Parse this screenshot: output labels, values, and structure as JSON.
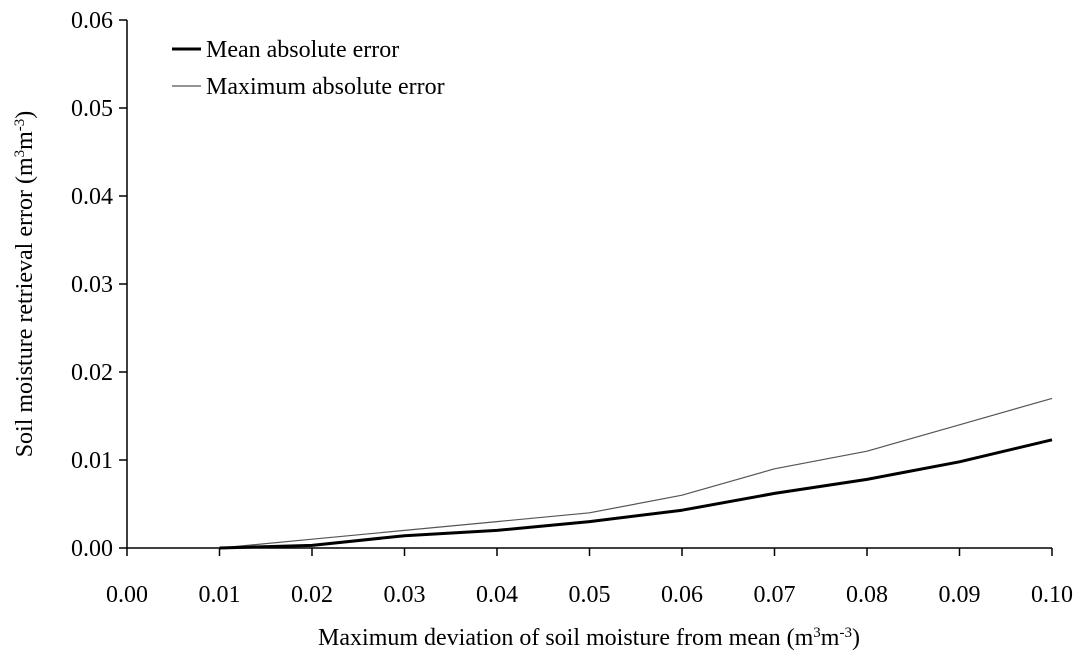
{
  "chart_data": {
    "type": "line",
    "xlabel": "Maximum deviation of soil moisture from mean",
    "xlabel_unit": {
      "base1": "m",
      "sup1": "3",
      "base2": "m",
      "sup2": "-3"
    },
    "ylabel": "Soil moisture retrieval error",
    "ylabel_unit": {
      "base1": "m",
      "sup1": "3",
      "base2": "m",
      "sup2": "-3"
    },
    "xlim": [
      0.0,
      0.1
    ],
    "ylim": [
      0.0,
      0.06
    ],
    "x_ticks": [
      "0.00",
      "0.01",
      "0.02",
      "0.03",
      "0.04",
      "0.05",
      "0.06",
      "0.07",
      "0.08",
      "0.09",
      "0.10"
    ],
    "y_ticks": [
      "0.00",
      "0.01",
      "0.02",
      "0.03",
      "0.04",
      "0.05",
      "0.06"
    ],
    "grid": false,
    "legend_position": "top-left",
    "x": [
      0.01,
      0.02,
      0.03,
      0.04,
      0.05,
      0.06,
      0.07,
      0.08,
      0.09,
      0.1
    ],
    "series": [
      {
        "name": "Mean absolute error",
        "color": "#000000",
        "style": "thick",
        "values": [
          0.0,
          0.0003,
          0.0014,
          0.002,
          0.003,
          0.0043,
          0.0062,
          0.0078,
          0.0098,
          0.0123
        ]
      },
      {
        "name": "Maximum absolute error",
        "color": "#555555",
        "style": "thin",
        "values": [
          0.0,
          0.001,
          0.002,
          0.003,
          0.004,
          0.006,
          0.009,
          0.011,
          0.014,
          0.017
        ]
      }
    ]
  }
}
